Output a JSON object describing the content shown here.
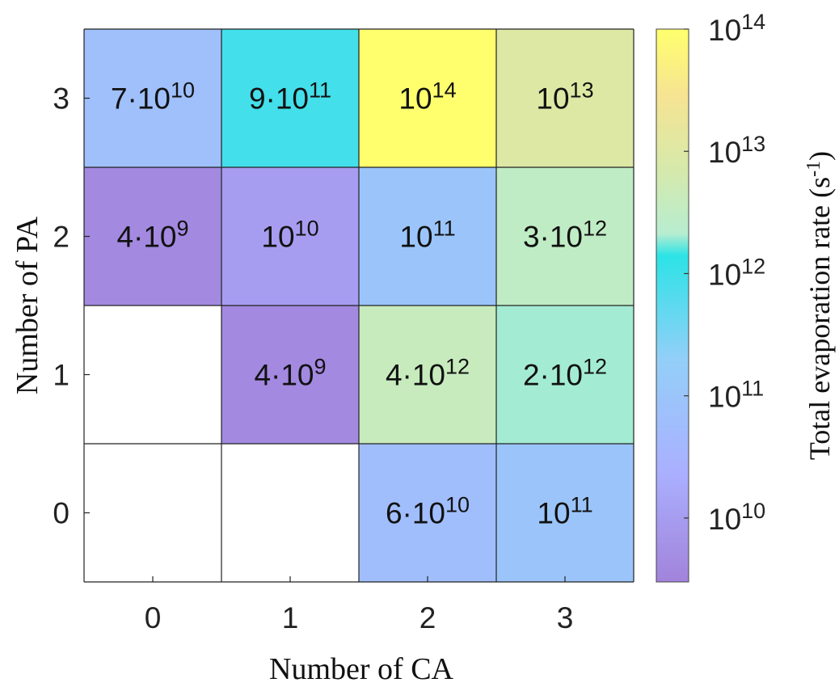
{
  "chart_data": {
    "type": "heatmap",
    "x_label": "Number of CA",
    "y_label": "Number of PA",
    "x_categories": [
      "0",
      "1",
      "2",
      "3"
    ],
    "y_categories": [
      "3",
      "2",
      "1",
      "0"
    ],
    "cells": [
      [
        {
          "value": 70000000000.0,
          "mant": "7·10",
          "exp": "10"
        },
        {
          "value": 900000000000.0,
          "mant": "9·10",
          "exp": "11"
        },
        {
          "value": 100000000000000.0,
          "mant": "10",
          "exp": "14"
        },
        {
          "value": 10000000000000.0,
          "mant": "10",
          "exp": "13"
        }
      ],
      [
        {
          "value": 4000000000.0,
          "mant": "4·10",
          "exp": "9"
        },
        {
          "value": 10000000000.0,
          "mant": "10",
          "exp": "10"
        },
        {
          "value": 100000000000.0,
          "mant": "10",
          "exp": "11"
        },
        {
          "value": 3000000000000.0,
          "mant": "3·10",
          "exp": "12"
        }
      ],
      [
        null,
        {
          "value": 4000000000.0,
          "mant": "4·10",
          "exp": "9"
        },
        {
          "value": 4000000000000.0,
          "mant": "4·10",
          "exp": "12"
        },
        {
          "value": 2000000000000.0,
          "mant": "2·10",
          "exp": "12"
        }
      ],
      [
        null,
        null,
        {
          "value": 60000000000.0,
          "mant": "6·10",
          "exp": "10"
        },
        {
          "value": 100000000000.0,
          "mant": "10",
          "exp": "11"
        }
      ]
    ],
    "colorbar": {
      "label": "Total evaporation rate (s",
      "label_sup": "-1",
      "label_tail": ")",
      "scale": "log",
      "range": [
        3000000000.0,
        100000000000000.0
      ],
      "ticks": [
        {
          "value": 100000000000000.0,
          "mant": "10",
          "exp": "14"
        },
        {
          "value": 10000000000000.0,
          "mant": "10",
          "exp": "13"
        },
        {
          "value": 1000000000000.0,
          "mant": "10",
          "exp": "12"
        },
        {
          "value": 100000000000.0,
          "mant": "10",
          "exp": "11"
        },
        {
          "value": 10000000000.0,
          "mant": "10",
          "exp": "10"
        }
      ]
    },
    "colormap": [
      "#a283db",
      "#aab0ff",
      "#94cff8",
      "#2ce3e6",
      "#b7edd0",
      "#d7e9aa",
      "#f6e492",
      "#ffff6e"
    ],
    "colormap_stops": [
      0,
      0.2,
      0.4,
      0.59,
      0.63,
      0.75,
      0.88,
      1
    ]
  }
}
